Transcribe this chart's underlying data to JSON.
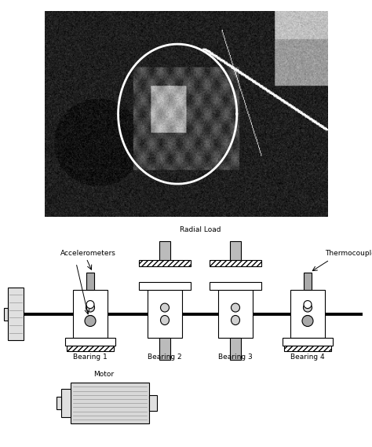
{
  "bg_color": "#ffffff",
  "fig_width": 4.74,
  "fig_height": 5.69,
  "labels": {
    "accelerometers": "Accelerometers",
    "radial_load": "Radial Load",
    "thermocouples": "Thermocouples",
    "bearing1": "Bearing 1",
    "bearing2": "Bearing 2",
    "bearing3": "Bearing 3",
    "bearing4": "Bearing 4",
    "motor": "Motor"
  },
  "colors": {
    "box_edge": "#000000",
    "sensor_color": "#aaaaaa",
    "motor_face": "#d8d8d8",
    "pulley_face": "#c8c8c8",
    "bearing_face": "#ffffff",
    "load_pin_face": "#bbbbbb"
  },
  "font_size_label": 6.5,
  "font_size_bearing": 6.5
}
